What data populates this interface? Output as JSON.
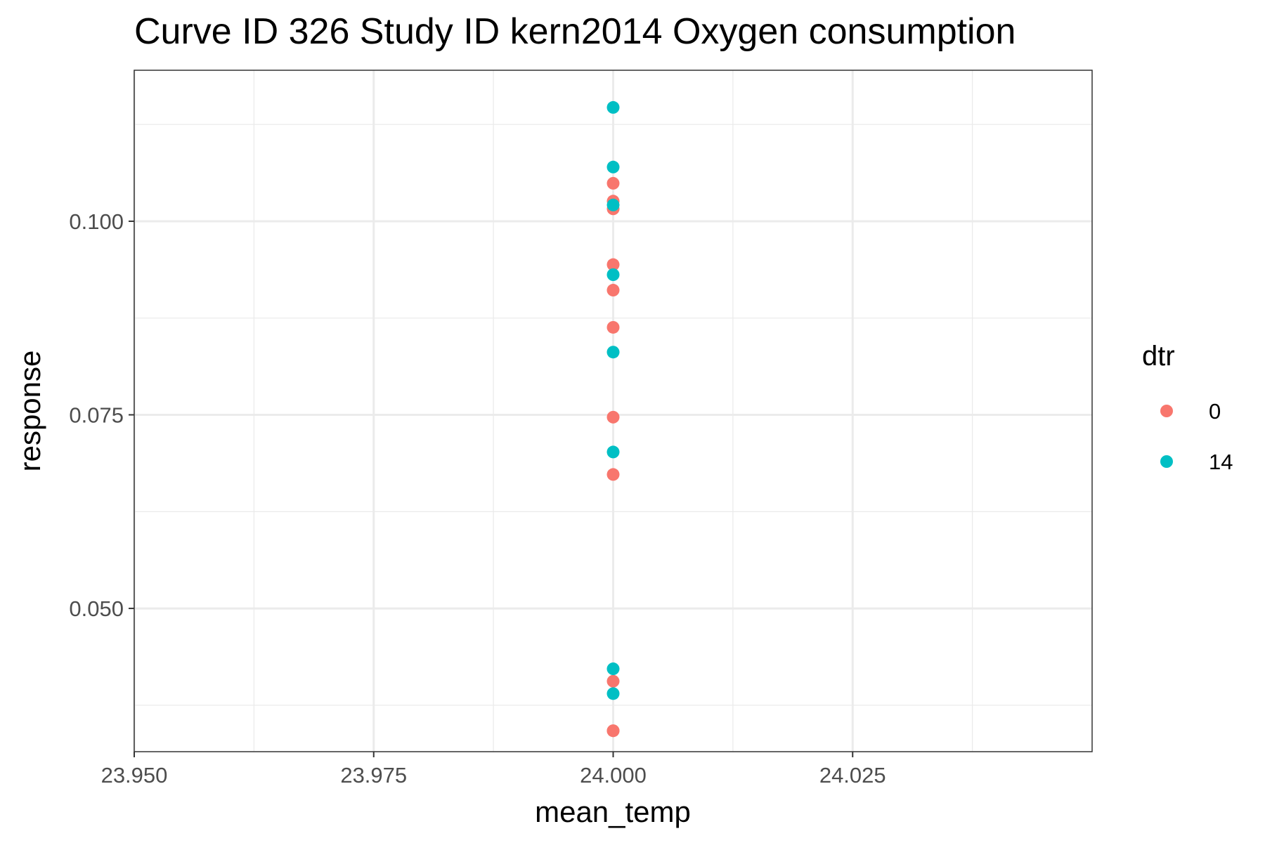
{
  "chart_data": {
    "type": "scatter",
    "title": "Curve ID 326 Study ID kern2014 Oxygen consumption",
    "xlabel": "mean_temp",
    "ylabel": "response",
    "xlim": [
      23.95,
      24.05
    ],
    "ylim": [
      0.0315,
      0.1195
    ],
    "x_ticks": [
      {
        "value": 23.95,
        "label": "23.950"
      },
      {
        "value": 23.975,
        "label": "23.975"
      },
      {
        "value": 24.0,
        "label": "24.000"
      },
      {
        "value": 24.025,
        "label": "24.025"
      }
    ],
    "y_ticks": [
      {
        "value": 0.05,
        "label": "0.050"
      },
      {
        "value": 0.075,
        "label": "0.075"
      },
      {
        "value": 0.1,
        "label": "0.100"
      }
    ],
    "grid": true,
    "legend": {
      "title": "dtr",
      "position": "right"
    },
    "series": [
      {
        "name": "0",
        "color": "#F8766D",
        "x": [
          24.0,
          24.0,
          24.0,
          24.0,
          24.0,
          24.0,
          24.0,
          24.0,
          24.0,
          24.0,
          24.0
        ],
        "y": [
          0.1049,
          0.1026,
          0.1016,
          0.0944,
          0.0911,
          0.0863,
          0.0747,
          0.0673,
          0.0406,
          0.0342,
          0.0342
        ]
      },
      {
        "name": "14",
        "color": "#00BFC4",
        "x": [
          24.0,
          24.0,
          24.0,
          24.0,
          24.0,
          24.0,
          24.0,
          24.0
        ],
        "y": [
          0.1147,
          0.107,
          0.1021,
          0.0931,
          0.0831,
          0.0702,
          0.0422,
          0.039
        ]
      }
    ]
  }
}
